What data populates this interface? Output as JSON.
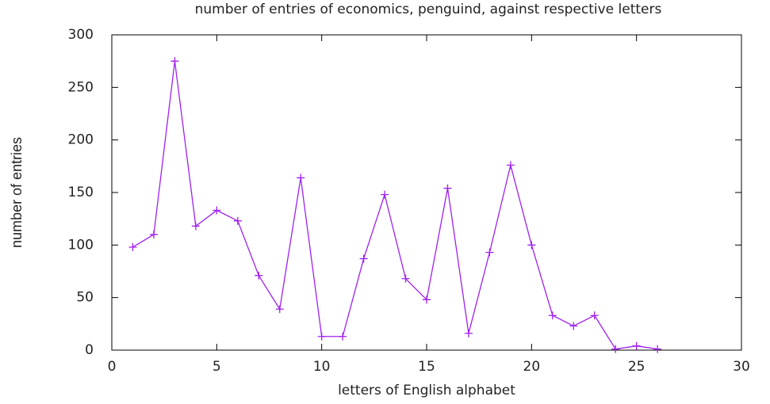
{
  "chart_data": {
    "type": "line",
    "title": "number of entries of economics,  penguind, against respective letters",
    "x_label": "letters of English alphabet",
    "y_label": "number of entries",
    "x": [
      1,
      2,
      3,
      4,
      5,
      6,
      7,
      8,
      9,
      10,
      11,
      12,
      13,
      14,
      15,
      16,
      17,
      18,
      19,
      20,
      21,
      22,
      23,
      24,
      25,
      26
    ],
    "values": [
      98,
      110,
      275,
      118,
      133,
      123,
      71,
      39,
      164,
      13,
      13,
      87,
      148,
      68,
      48,
      154,
      16,
      93,
      176,
      100,
      33,
      23,
      33,
      1,
      4,
      1
    ],
    "color": "#a020f0",
    "xlim": [
      0,
      30
    ],
    "xticks": [
      0,
      5,
      10,
      15,
      20,
      25,
      30
    ],
    "ylim": [
      0,
      300
    ],
    "yticks": [
      0,
      50,
      100,
      150,
      200,
      250,
      300
    ],
    "grid": false,
    "markers": true
  }
}
